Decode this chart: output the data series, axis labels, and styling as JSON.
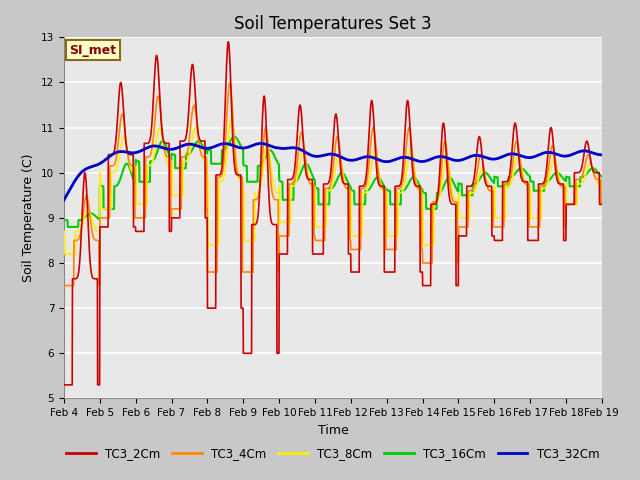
{
  "title": "Soil Temperatures Set 3",
  "xlabel": "Time",
  "ylabel": "Soil Temperature (C)",
  "ylim": [
    5.0,
    13.0
  ],
  "yticks": [
    5.0,
    6.0,
    7.0,
    8.0,
    9.0,
    10.0,
    11.0,
    12.0,
    13.0
  ],
  "series_colors": {
    "TC3_2Cm": "#cc0000",
    "TC3_4Cm": "#ff8800",
    "TC3_8Cm": "#ffee00",
    "TC3_16Cm": "#00cc00",
    "TC3_32Cm": "#0000cc"
  },
  "series_linewidths": {
    "TC3_2Cm": 1.2,
    "TC3_4Cm": 1.2,
    "TC3_8Cm": 1.2,
    "TC3_16Cm": 1.5,
    "TC3_32Cm": 2.0
  },
  "xtick_labels": [
    "Feb 4",
    "Feb 5",
    "Feb 6",
    "Feb 7",
    "Feb 8",
    "Feb 9",
    "Feb 10",
    "Feb 11",
    "Feb 12",
    "Feb 13",
    "Feb 14",
    "Feb 15",
    "Feb 16",
    "Feb 17",
    "Feb 18",
    "Feb 19"
  ],
  "annotation_text": "SI_met",
  "annotation_color": "#8b0000",
  "annotation_bg": "#ffffcc",
  "annotation_border": "#8b6914",
  "plot_bg": "#e8e8e8",
  "fig_bg": "#c8c8c8",
  "grid_color": "#ffffff",
  "title_fontsize": 12,
  "tick_fontsize": 7.5
}
